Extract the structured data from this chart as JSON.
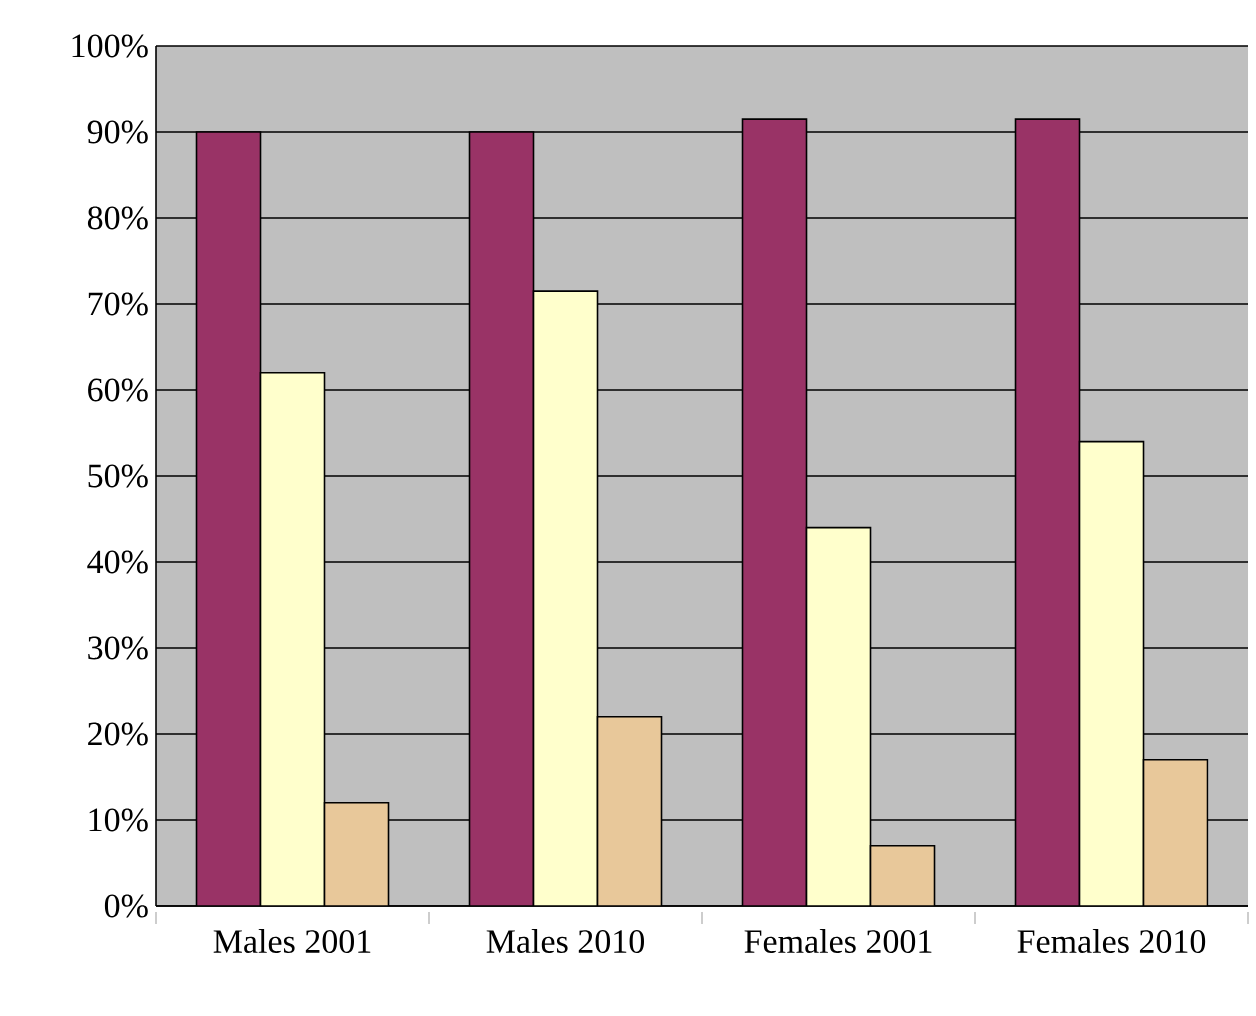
{
  "chart_data": {
    "type": "bar",
    "categories": [
      "Males 2001",
      "Males 2010",
      "Females 2001",
      "Females 2010"
    ],
    "series": [
      {
        "color": "#993366",
        "values": [
          90,
          90,
          91.5,
          91.5
        ]
      },
      {
        "color": "#ffffcc",
        "values": [
          62,
          71.5,
          44,
          54
        ]
      },
      {
        "color": "#e8c89a",
        "values": [
          12,
          22,
          7,
          17
        ]
      }
    ],
    "ylim": [
      0,
      100
    ],
    "yticks": [
      {
        "value": 0,
        "label": "0%"
      },
      {
        "value": 10,
        "label": "10%"
      },
      {
        "value": 20,
        "label": "20%"
      },
      {
        "value": 30,
        "label": "30%"
      },
      {
        "value": 40,
        "label": "40%"
      },
      {
        "value": 50,
        "label": "50%"
      },
      {
        "value": 60,
        "label": "60%"
      },
      {
        "value": 70,
        "label": "70%"
      },
      {
        "value": 80,
        "label": "80%"
      },
      {
        "value": 90,
        "label": "90%"
      },
      {
        "value": 100,
        "label": "100%"
      }
    ],
    "grid": "y"
  }
}
